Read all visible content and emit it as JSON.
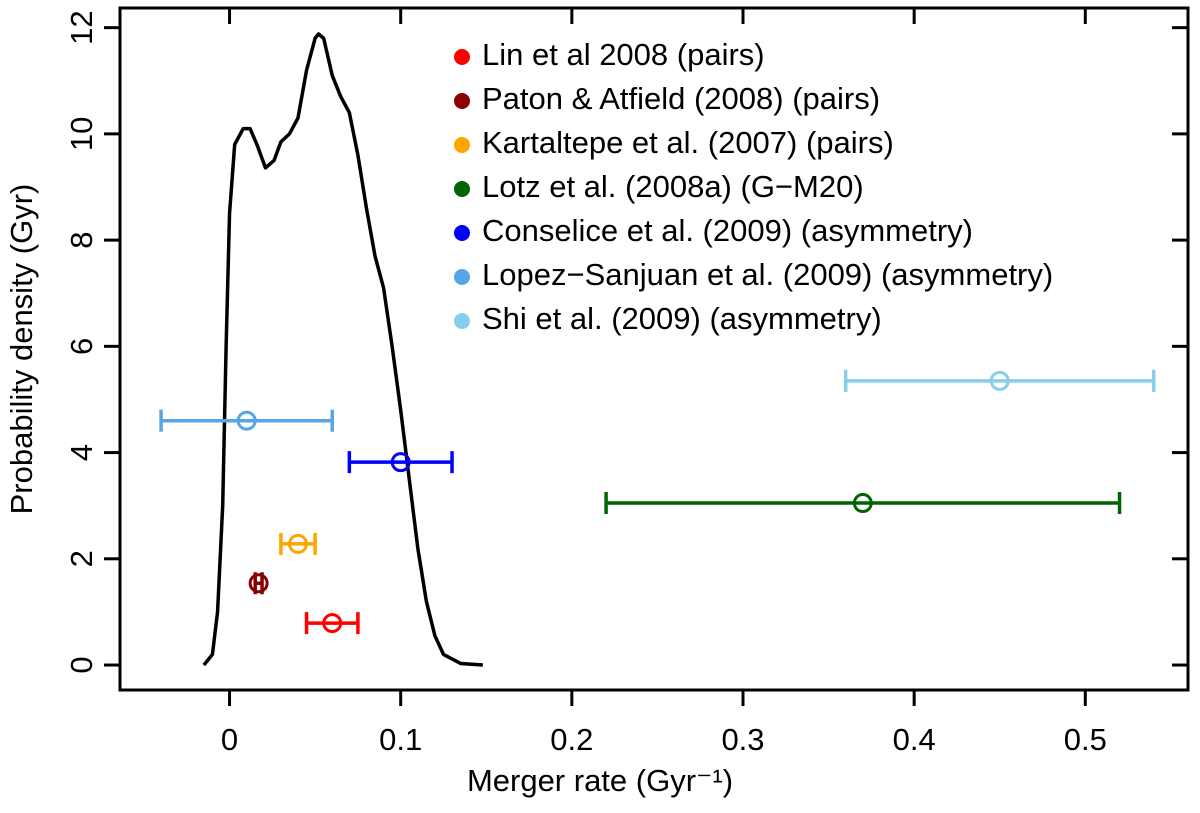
{
  "chart_data": {
    "type": "scatter",
    "x_label": "Merger rate (Gyr⁻¹)",
    "y_label": "Probability density (Gyr)",
    "xlim": [
      -0.064,
      0.56
    ],
    "ylim": [
      -0.47,
      12.37
    ],
    "xticks": [
      0,
      0.1,
      0.2,
      0.3,
      0.4,
      0.5
    ],
    "yticks": [
      0,
      2,
      4,
      6,
      8,
      10,
      12
    ],
    "legend": "upper right",
    "series": [
      {
        "name": "Lin et al 2008 (pairs)",
        "color": "#ff0000",
        "x": [
          0.06
        ],
        "y": [
          0.79
        ],
        "xerr": [
          0.015
        ]
      },
      {
        "name": "Paton & Atfield (2008) (pairs)",
        "color": "#8b0000",
        "x": [
          0.017
        ],
        "y": [
          1.54
        ],
        "xerr": [
          0.002
        ]
      },
      {
        "name": "Kartaltepe et al. (2007) (pairs)",
        "color": "#ffa500",
        "x": [
          0.04
        ],
        "y": [
          2.28
        ],
        "xerr": [
          0.01
        ]
      },
      {
        "name": "Lotz et al. (2008a) (G−M20)",
        "color": "#006400",
        "x": [
          0.37
        ],
        "y": [
          3.05
        ],
        "xerr": [
          0.15
        ]
      },
      {
        "name": "Conselice et al. (2009) (asymmetry)",
        "color": "#0000ff",
        "x": [
          0.1
        ],
        "y": [
          3.82
        ],
        "xerr": [
          0.03
        ]
      },
      {
        "name": "Lopez−Sanjuan et al. (2009) (asymmetry)",
        "color": "#56a5e6",
        "x": [
          0.01
        ],
        "y": [
          4.6
        ],
        "xerr": [
          0.05
        ]
      },
      {
        "name": "Shi et al. (2009) (asymmetry)",
        "color": "#87ceeb",
        "x": [
          0.45
        ],
        "y": [
          5.35
        ],
        "xerr": [
          0.09
        ]
      }
    ],
    "curve": {
      "color": "#000000",
      "x": [
        -0.015,
        -0.01,
        -0.007,
        -0.004,
        -0.002,
        0,
        0.003,
        0.008,
        0.012,
        0.016,
        0.021,
        0.026,
        0.03,
        0.035,
        0.04,
        0.045,
        0.05,
        0.052,
        0.055,
        0.06,
        0.065,
        0.07,
        0.075,
        0.08,
        0.085,
        0.09,
        0.095,
        0.1,
        0.105,
        0.11,
        0.115,
        0.12,
        0.125,
        0.135,
        0.148
      ],
      "y": [
        0,
        0.2,
        1,
        3,
        6,
        8.5,
        9.8,
        10.1,
        10.1,
        9.8,
        9.36,
        9.5,
        9.85,
        10,
        10.3,
        11.2,
        11.8,
        11.88,
        11.8,
        11.1,
        10.7,
        10.4,
        9.6,
        8.6,
        7.7,
        7.1,
        6,
        4.8,
        3.5,
        2.2,
        1.2,
        0.55,
        0.2,
        0.03,
        0
      ]
    }
  }
}
